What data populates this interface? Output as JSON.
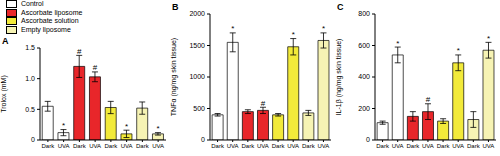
{
  "chart_data": [
    {
      "type": "bar",
      "panel": "A",
      "y_label": "Trolox (mM)",
      "categories": [
        "Dark",
        "UVA",
        "Dark",
        "UVA",
        "Dark",
        "UVA",
        "Dark",
        "UVA"
      ],
      "values": [
        0.55,
        0.12,
        1.2,
        1.03,
        0.53,
        0.1,
        0.52,
        0.1
      ],
      "errors": [
        0.08,
        0.05,
        0.18,
        0.08,
        0.1,
        0.06,
        0.1,
        0.02
      ],
      "annotations": [
        null,
        "*",
        "#",
        "#",
        null,
        "*",
        null,
        "*"
      ],
      "colors": [
        "#ffffff",
        "#ffffff",
        "#e8262a",
        "#e8262a",
        "#f2ea3a",
        "#f2ea3a",
        "#f6f3b4",
        "#f6f3b4"
      ],
      "ylim": [
        0,
        1.5
      ],
      "yticks": [
        0,
        0.5,
        {
          "value": 1,
          "label": "1.0"
        },
        1.5
      ],
      "grid": false,
      "legend": "upper left",
      "legend_entries": [
        {
          "name": "Control",
          "color": "#ffffff"
        },
        {
          "name": "Ascorbate liposome",
          "color": "#e8262a"
        },
        {
          "name": "Ascorbate solution",
          "color": "#f2ea3a"
        },
        {
          "name": "Empty liposome",
          "color": "#f6f3b4"
        }
      ]
    },
    {
      "type": "bar",
      "panel": "B",
      "y_label": "TNFα (ng/mg skin tissue)",
      "categories": [
        "Dark",
        "UVA",
        "Dark",
        "UVA",
        "Dark",
        "UVA",
        "Dark",
        "UVA"
      ],
      "values": [
        400,
        1550,
        450,
        470,
        400,
        1480,
        430,
        1580
      ],
      "errors": [
        20,
        150,
        30,
        50,
        20,
        130,
        40,
        120
      ],
      "annotations": [
        null,
        "*",
        null,
        "#",
        null,
        "*",
        null,
        "*"
      ],
      "colors": [
        "#ffffff",
        "#ffffff",
        "#e8262a",
        "#e8262a",
        "#f2ea3a",
        "#f2ea3a",
        "#f6f3b4",
        "#f6f3b4"
      ],
      "ylim": [
        0,
        2000
      ],
      "yticks": [
        0,
        500,
        1000,
        1500,
        2000
      ],
      "grid": false
    },
    {
      "type": "bar",
      "panel": "C",
      "y_label": "IL-1β (ng/mg skin tissue)",
      "categories": [
        "Dark",
        "UVA",
        "Dark",
        "UVA",
        "Dark",
        "UVA",
        "Dark",
        "UVA"
      ],
      "values": [
        110,
        540,
        150,
        180,
        120,
        490,
        130,
        570
      ],
      "errors": [
        10,
        50,
        30,
        50,
        15,
        50,
        50,
        50
      ],
      "annotations": [
        null,
        "*",
        null,
        "#",
        null,
        "*",
        null,
        "*"
      ],
      "colors": [
        "#ffffff",
        "#ffffff",
        "#e8262a",
        "#e8262a",
        "#f2ea3a",
        "#f2ea3a",
        "#f6f3b4",
        "#f6f3b4"
      ],
      "ylim": [
        0,
        800
      ],
      "yticks": [
        0,
        200,
        400,
        600,
        800
      ],
      "grid": false
    }
  ]
}
